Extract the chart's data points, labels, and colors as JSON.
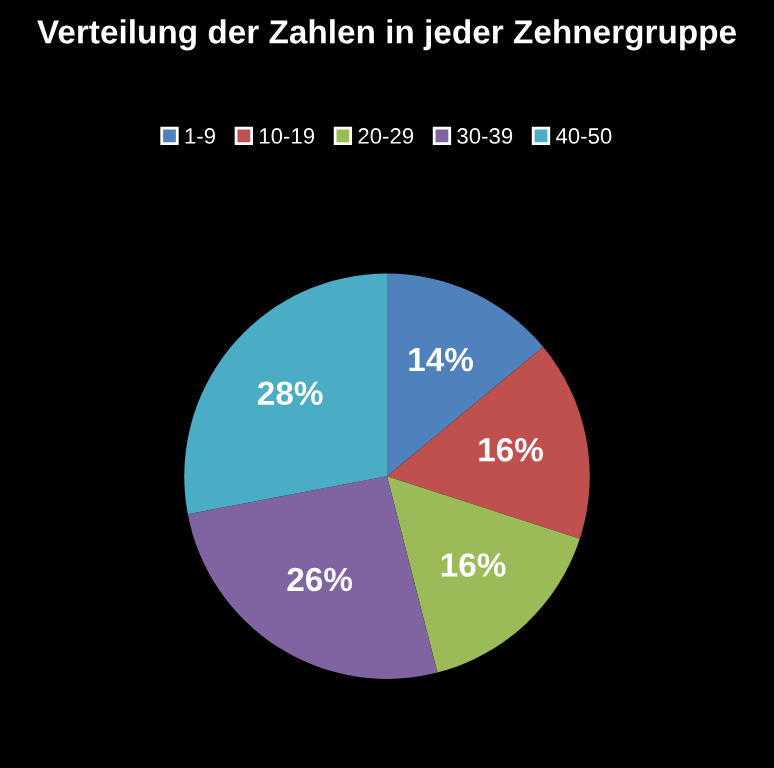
{
  "chart_data": {
    "type": "pie",
    "title": "Verteilung der Zahlen in jeder Zehnergruppe",
    "categories": [
      "1-9",
      "10-19",
      "20-29",
      "30-39",
      "40-50"
    ],
    "values": [
      14,
      16,
      16,
      26,
      28
    ],
    "value_labels": [
      "14%",
      "16%",
      "16%",
      "26%",
      "28%"
    ],
    "colors": [
      "#4f81bd",
      "#c0504d",
      "#9bbb59",
      "#8064a2",
      "#4bacc6"
    ],
    "legend": "top"
  }
}
